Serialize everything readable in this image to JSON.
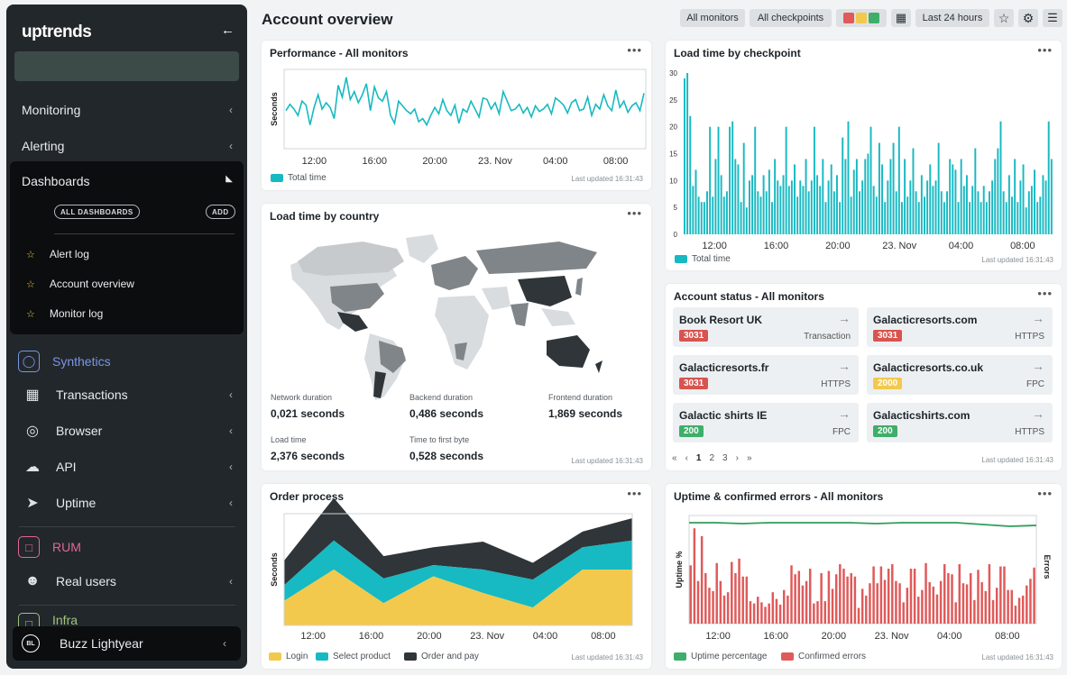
{
  "app": {
    "logo": "uptrends",
    "collapse_icon": "arrow-left-icon"
  },
  "sidebar": {
    "nav": [
      {
        "label": "Monitoring"
      },
      {
        "label": "Alerting"
      }
    ],
    "dashboards": {
      "title": "Dashboards",
      "all_label": "ALL DASHBOARDS",
      "add_label": "ADD",
      "items": [
        {
          "label": "Alert log"
        },
        {
          "label": "Account overview"
        },
        {
          "label": "Monitor log"
        }
      ]
    },
    "synthetics": {
      "label": "Synthetics",
      "color": "#7b95e8"
    },
    "synthetic_items": [
      {
        "label": "Transactions",
        "icon": "film-icon"
      },
      {
        "label": "Browser",
        "icon": "compass-icon"
      },
      {
        "label": "API",
        "icon": "cloud-sync-icon"
      },
      {
        "label": "Uptime",
        "icon": "send-icon"
      }
    ],
    "rum": {
      "label": "RUM",
      "color": "#e0679a"
    },
    "rum_items": [
      {
        "label": "Real users",
        "icon": "users-icon"
      }
    ],
    "cutoff_label": "Infra",
    "user": {
      "initials": "BL",
      "name": "Buzz Lightyear"
    }
  },
  "header": {
    "title": "Account overview",
    "filters": [
      "All monitors",
      "All checkpoints"
    ],
    "status_colors": [
      "#e05a5a",
      "#f2c94c",
      "#3fae6a"
    ],
    "period": "Last 24 hours"
  },
  "updated": "Last updated 16:31:43",
  "x_ticks": [
    "12:00",
    "16:00",
    "20:00",
    "23. Nov",
    "04:00",
    "08:00"
  ],
  "performance": {
    "title": "Performance - All monitors",
    "ylabel": "Seconds",
    "legend": "Total time",
    "color": "#17b9c2"
  },
  "load_checkpoint": {
    "title": "Load time by checkpoint",
    "legend": "Total time",
    "color": "#17b9c2"
  },
  "country": {
    "title": "Load time by country",
    "stats": [
      {
        "label": "Network duration",
        "value": "0,021 seconds"
      },
      {
        "label": "Backend duration",
        "value": "0,486 seconds"
      },
      {
        "label": "Frontend duration",
        "value": "1,869 seconds"
      },
      {
        "label": "Load time",
        "value": "2,376 seconds"
      },
      {
        "label": "Time to first byte",
        "value": "0,528 seconds"
      }
    ]
  },
  "account_status": {
    "title": "Account status - All monitors",
    "items": [
      {
        "name": "Book Resort UK",
        "code": "3031",
        "type": "Transaction",
        "color": "#e05a5a"
      },
      {
        "name": "Galacticresorts.com",
        "code": "3031",
        "type": "HTTPS",
        "color": "#e05a5a"
      },
      {
        "name": "Galacticresorts.fr",
        "code": "3031",
        "type": "HTTPS",
        "color": "#e05a5a"
      },
      {
        "name": "Galacticresorts.co.uk",
        "code": "2000",
        "type": "FPC",
        "color": "#f2c94c"
      },
      {
        "name": "Galactic shirts IE",
        "code": "200",
        "type": "FPC",
        "color": "#3fae6a"
      },
      {
        "name": "Galacticshirts.com",
        "code": "200",
        "type": "HTTPS",
        "color": "#3fae6a"
      }
    ],
    "pages": [
      "1",
      "2",
      "3"
    ]
  },
  "order": {
    "title": "Order process",
    "ylabel": "Seconds",
    "legend": [
      {
        "label": "Login",
        "color": "#f2c94c"
      },
      {
        "label": "Select product",
        "color": "#17b9c2"
      },
      {
        "label": "Order and pay",
        "color": "#2f3538"
      }
    ]
  },
  "uptime": {
    "title": "Uptime & confirmed errors - All monitors",
    "ylabel_left": "Uptime %",
    "ylabel_right": "Errors",
    "legend": [
      {
        "label": "Uptime percentage",
        "color": "#3fae6a"
      },
      {
        "label": "Confirmed errors",
        "color": "#e05a5a"
      }
    ]
  },
  "chart_data": [
    {
      "type": "line",
      "title": "Performance - All monitors",
      "ylabel": "Seconds",
      "series": [
        {
          "name": "Total time",
          "values": [
            0.48,
            0.56,
            0.5,
            0.42,
            0.6,
            0.55,
            0.3,
            0.52,
            0.68,
            0.5,
            0.58,
            0.52,
            0.38,
            0.8,
            0.65,
            0.9,
            0.62,
            0.72,
            0.58,
            0.68,
            0.82,
            0.48,
            0.78,
            0.64,
            0.6,
            0.72,
            0.42,
            0.32,
            0.6,
            0.54,
            0.48,
            0.44,
            0.5,
            0.34,
            0.38,
            0.3,
            0.42,
            0.52,
            0.44,
            0.62,
            0.48,
            0.42,
            0.55,
            0.32,
            0.5,
            0.46,
            0.6,
            0.5,
            0.4,
            0.64,
            0.62,
            0.5,
            0.58,
            0.44,
            0.72,
            0.6,
            0.48,
            0.5,
            0.56,
            0.45,
            0.52,
            0.4,
            0.54,
            0.47,
            0.5,
            0.56,
            0.44,
            0.64,
            0.6,
            0.55,
            0.45,
            0.58,
            0.62,
            0.48,
            0.5,
            0.65,
            0.42,
            0.56,
            0.5,
            0.68,
            0.54,
            0.48,
            0.74,
            0.52,
            0.6,
            0.46,
            0.54,
            0.58,
            0.48,
            0.7
          ]
        }
      ]
    },
    {
      "type": "bar",
      "title": "Load time by checkpoint",
      "ylim": [
        0,
        30
      ],
      "series": [
        {
          "name": "Total time",
          "values": [
            29,
            30,
            22,
            9,
            12,
            7,
            6,
            6,
            8,
            20,
            7,
            14,
            20,
            11,
            7,
            8,
            20,
            21,
            14,
            13,
            6,
            17,
            5,
            10,
            11,
            20,
            8,
            7,
            11,
            8,
            12,
            6,
            14,
            10,
            9,
            11,
            20,
            9,
            10,
            13,
            7,
            10,
            9,
            14,
            8,
            10,
            20,
            11,
            9,
            14,
            6,
            10,
            13,
            8,
            11,
            6,
            18,
            14,
            21,
            7,
            12,
            14,
            8,
            10,
            14,
            15,
            20,
            9,
            7,
            17,
            13,
            6,
            10,
            14,
            17,
            8,
            20,
            6,
            14,
            7,
            10,
            16,
            8,
            6,
            11,
            7,
            10,
            13,
            9,
            10,
            17,
            8,
            6,
            8,
            14,
            13,
            12,
            6,
            14,
            9,
            11,
            6,
            9,
            16,
            8,
            6,
            9,
            6,
            8,
            10,
            14,
            16,
            21,
            8,
            6,
            11,
            7,
            14,
            6,
            10,
            13,
            5,
            8,
            9,
            12,
            6,
            7,
            11,
            10,
            21,
            14
          ]
        }
      ]
    },
    {
      "type": "area",
      "title": "Order process",
      "ylabel": "Seconds",
      "categories": [
        "0",
        "1",
        "2",
        "3",
        "4",
        "5",
        "6",
        "7"
      ],
      "series": [
        {
          "name": "Login",
          "values": [
            0.22,
            0.5,
            0.2,
            0.44,
            0.29,
            0.16,
            0.5,
            0.5
          ]
        },
        {
          "name": "Select product",
          "values": [
            0.14,
            0.26,
            0.22,
            0.1,
            0.21,
            0.25,
            0.2,
            0.26
          ]
        },
        {
          "name": "Order and pay",
          "values": [
            0.22,
            0.38,
            0.2,
            0.16,
            0.25,
            0.15,
            0.14,
            0.2
          ]
        }
      ]
    },
    {
      "type": "bar",
      "title": "Uptime & confirmed errors - All monitors",
      "series": [
        {
          "name": "Uptime percentage",
          "values": [
            0.96,
            0.96,
            0.95,
            0.96,
            0.96,
            0.96,
            0.96,
            0.95,
            0.96,
            0.96,
            0.96,
            0.94,
            0.92,
            0.93
          ]
        },
        {
          "name": "Confirmed errors",
          "values": [
            52,
            85,
            38,
            78,
            45,
            32,
            29,
            54,
            38,
            25,
            28,
            55,
            45,
            58,
            42,
            42,
            20,
            18,
            24,
            19,
            15,
            18,
            28,
            22,
            17,
            30,
            25,
            52,
            44,
            47,
            34,
            38,
            49,
            18,
            20,
            45,
            20,
            47,
            31,
            44,
            53,
            49,
            42,
            45,
            42,
            14,
            31,
            25,
            36,
            51,
            36,
            51,
            39,
            49,
            53,
            38,
            36,
            19,
            32,
            49,
            49,
            24,
            30,
            54,
            37,
            33,
            26,
            38,
            53,
            45,
            44,
            19,
            53,
            36,
            35,
            45,
            21,
            48,
            37,
            29,
            53,
            21,
            32,
            51,
            51,
            30,
            30,
            16,
            23,
            25,
            34,
            40,
            50
          ]
        }
      ]
    }
  ]
}
